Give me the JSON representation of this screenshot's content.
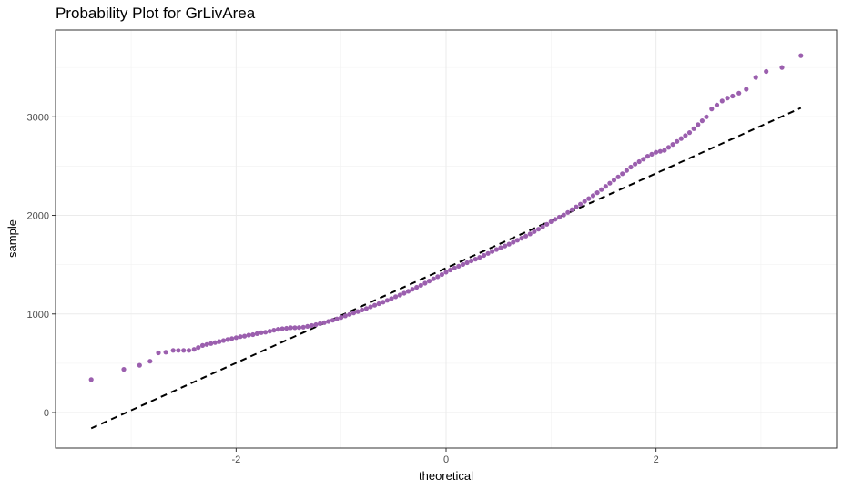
{
  "chart_data": {
    "type": "scatter",
    "title": "Probability Plot for GrLivArea",
    "xlabel": "theoretical",
    "ylabel": "sample",
    "xlim": [
      -3.72,
      3.72
    ],
    "ylim": [
      -360,
      3880
    ],
    "x_ticks": [
      -2,
      0,
      2
    ],
    "y_ticks": [
      0,
      1000,
      2000,
      3000
    ],
    "x_minor": [
      -3,
      -1,
      1,
      3
    ],
    "y_minor": [
      500,
      1500,
      2500,
      3500
    ],
    "grid": true,
    "point_color": "#9B5FAE",
    "reference_line": {
      "name": "normal reference line",
      "style": "dashed",
      "color": "#000000",
      "x": [
        -3.38,
        3.38
      ],
      "y": [
        -160,
        3090
      ]
    },
    "series": [
      {
        "name": "sample quantiles",
        "points": [
          [
            -3.38,
            334
          ],
          [
            -3.07,
            438
          ],
          [
            -2.92,
            480
          ],
          [
            -2.82,
            520
          ],
          [
            -2.74,
            605
          ],
          [
            -2.67,
            612
          ],
          [
            -2.6,
            630
          ],
          [
            -2.55,
            630
          ],
          [
            -2.5,
            630
          ],
          [
            -2.45,
            630
          ],
          [
            -2.4,
            640
          ],
          [
            -2.36,
            660
          ],
          [
            -2.32,
            680
          ],
          [
            -2.28,
            690
          ],
          [
            -2.24,
            700
          ],
          [
            -2.2,
            710
          ],
          [
            -2.16,
            720
          ],
          [
            -2.12,
            730
          ],
          [
            -2.08,
            740
          ],
          [
            -2.04,
            750
          ],
          [
            -2.0,
            760
          ],
          [
            -1.96,
            770
          ],
          [
            -1.92,
            775
          ],
          [
            -1.88,
            785
          ],
          [
            -1.84,
            790
          ],
          [
            -1.8,
            800
          ],
          [
            -1.76,
            810
          ],
          [
            -1.72,
            815
          ],
          [
            -1.68,
            825
          ],
          [
            -1.64,
            835
          ],
          [
            -1.6,
            845
          ],
          [
            -1.56,
            850
          ],
          [
            -1.52,
            855
          ],
          [
            -1.48,
            860
          ],
          [
            -1.44,
            860
          ],
          [
            -1.4,
            862
          ],
          [
            -1.36,
            866
          ],
          [
            -1.32,
            874
          ],
          [
            -1.28,
            882
          ],
          [
            -1.24,
            892
          ],
          [
            -1.2,
            902
          ],
          [
            -1.16,
            912
          ],
          [
            -1.12,
            924
          ],
          [
            -1.08,
            936
          ],
          [
            -1.04,
            950
          ],
          [
            -1.0,
            965
          ],
          [
            -0.96,
            980
          ],
          [
            -0.92,
            995
          ],
          [
            -0.88,
            1010
          ],
          [
            -0.84,
            1025
          ],
          [
            -0.8,
            1040
          ],
          [
            -0.76,
            1055
          ],
          [
            -0.72,
            1072
          ],
          [
            -0.68,
            1088
          ],
          [
            -0.64,
            1104
          ],
          [
            -0.6,
            1120
          ],
          [
            -0.56,
            1138
          ],
          [
            -0.52,
            1156
          ],
          [
            -0.48,
            1174
          ],
          [
            -0.44,
            1192
          ],
          [
            -0.4,
            1210
          ],
          [
            -0.36,
            1230
          ],
          [
            -0.32,
            1250
          ],
          [
            -0.28,
            1270
          ],
          [
            -0.24,
            1290
          ],
          [
            -0.2,
            1312
          ],
          [
            -0.16,
            1334
          ],
          [
            -0.12,
            1356
          ],
          [
            -0.08,
            1378
          ],
          [
            -0.04,
            1400
          ],
          [
            0.0,
            1424
          ],
          [
            0.04,
            1446
          ],
          [
            0.08,
            1466
          ],
          [
            0.12,
            1484
          ],
          [
            0.16,
            1502
          ],
          [
            0.2,
            1520
          ],
          [
            0.24,
            1538
          ],
          [
            0.28,
            1556
          ],
          [
            0.32,
            1574
          ],
          [
            0.36,
            1594
          ],
          [
            0.4,
            1614
          ],
          [
            0.44,
            1634
          ],
          [
            0.48,
            1654
          ],
          [
            0.52,
            1672
          ],
          [
            0.56,
            1690
          ],
          [
            0.6,
            1708
          ],
          [
            0.64,
            1728
          ],
          [
            0.68,
            1748
          ],
          [
            0.72,
            1768
          ],
          [
            0.76,
            1790
          ],
          [
            0.8,
            1812
          ],
          [
            0.84,
            1836
          ],
          [
            0.88,
            1860
          ],
          [
            0.92,
            1884
          ],
          [
            0.96,
            1910
          ],
          [
            1.0,
            1936
          ],
          [
            1.04,
            1960
          ],
          [
            1.08,
            1982
          ],
          [
            1.12,
            2004
          ],
          [
            1.16,
            2030
          ],
          [
            1.2,
            2058
          ],
          [
            1.24,
            2086
          ],
          [
            1.28,
            2114
          ],
          [
            1.32,
            2142
          ],
          [
            1.36,
            2170
          ],
          [
            1.4,
            2200
          ],
          [
            1.44,
            2230
          ],
          [
            1.48,
            2262
          ],
          [
            1.52,
            2294
          ],
          [
            1.56,
            2326
          ],
          [
            1.6,
            2358
          ],
          [
            1.64,
            2390
          ],
          [
            1.68,
            2422
          ],
          [
            1.72,
            2456
          ],
          [
            1.76,
            2490
          ],
          [
            1.8,
            2520
          ],
          [
            1.84,
            2545
          ],
          [
            1.88,
            2570
          ],
          [
            1.92,
            2600
          ],
          [
            1.96,
            2620
          ],
          [
            2.0,
            2640
          ],
          [
            2.04,
            2650
          ],
          [
            2.08,
            2660
          ],
          [
            2.12,
            2690
          ],
          [
            2.16,
            2720
          ],
          [
            2.2,
            2750
          ],
          [
            2.24,
            2780
          ],
          [
            2.28,
            2810
          ],
          [
            2.32,
            2840
          ],
          [
            2.36,
            2880
          ],
          [
            2.4,
            2920
          ],
          [
            2.44,
            2960
          ],
          [
            2.48,
            3000
          ],
          [
            2.53,
            3080
          ],
          [
            2.58,
            3120
          ],
          [
            2.63,
            3160
          ],
          [
            2.68,
            3190
          ],
          [
            2.73,
            3210
          ],
          [
            2.79,
            3240
          ],
          [
            2.86,
            3280
          ],
          [
            2.95,
            3400
          ],
          [
            3.05,
            3460
          ],
          [
            3.2,
            3500
          ],
          [
            3.38,
            3620
          ]
        ]
      }
    ]
  }
}
